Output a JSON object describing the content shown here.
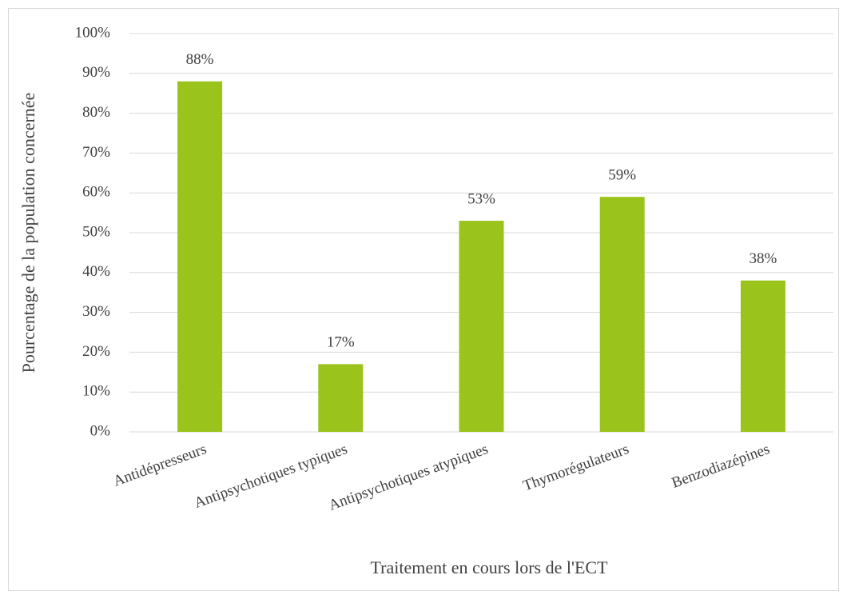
{
  "chart_data": {
    "type": "bar",
    "x_label": "Traitement en cours lors de l'ECT",
    "y_label": "Pourcentage de la population concernée",
    "categories": [
      "Antidépresseurs",
      "Antipsychotiques typiques",
      "Antipsychotiques atypiques",
      "Thymorégulateurs",
      "Benzodiazépines"
    ],
    "values": [
      88,
      17,
      53,
      59,
      38
    ],
    "value_labels": [
      "88%",
      "17%",
      "53%",
      "59%",
      "38%"
    ],
    "color": "#9ac31c",
    "ylim": [
      0,
      100
    ],
    "yticks": [
      {
        "value": 0,
        "label": "0%"
      },
      {
        "value": 10,
        "label": "10%"
      },
      {
        "value": 20,
        "label": "20%"
      },
      {
        "value": 30,
        "label": "30%"
      },
      {
        "value": 40,
        "label": "40%"
      },
      {
        "value": 50,
        "label": "50%"
      },
      {
        "value": 60,
        "label": "60%"
      },
      {
        "value": 70,
        "label": "70%"
      },
      {
        "value": 80,
        "label": "80%"
      },
      {
        "value": 90,
        "label": "90%"
      },
      {
        "value": 100,
        "label": "100%"
      }
    ],
    "grid": true
  }
}
